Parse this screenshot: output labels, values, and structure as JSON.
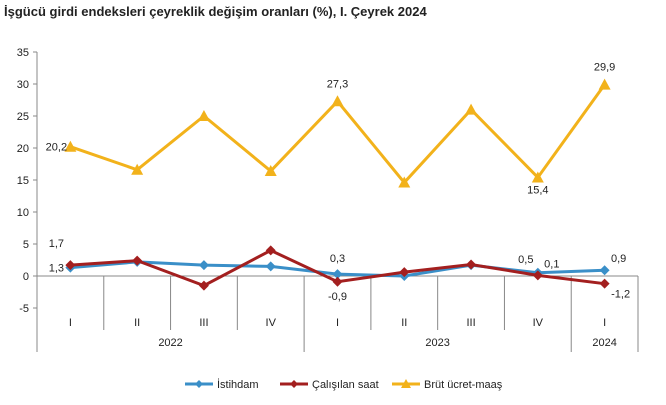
{
  "chart_data": {
    "type": "line",
    "title": "İşgücü girdi endeksleri çeyreklik değişim oranları (%), I. Çeyrek 2024",
    "categories": [
      "I",
      "II",
      "III",
      "IV",
      "I",
      "II",
      "III",
      "IV",
      "I"
    ],
    "years": [
      {
        "label": "2022",
        "span": 4
      },
      {
        "label": "2023",
        "span": 4
      },
      {
        "label": "2024",
        "span": 1
      }
    ],
    "ylim": [
      -5,
      35
    ],
    "yticks": [
      -5,
      0,
      5,
      10,
      15,
      20,
      25,
      30,
      35
    ],
    "grid": false,
    "legend": "bottom",
    "series": [
      {
        "name": "İstihdam",
        "color": "#3a8fc8",
        "marker": "diamond",
        "values": [
          1.3,
          2.2,
          1.7,
          1.5,
          0.3,
          0.0,
          1.7,
          0.5,
          0.9
        ],
        "labels": {
          "0": "1,3",
          "4": "0,3",
          "7": "0,5",
          "8": "0,9"
        }
      },
      {
        "name": "Çalışılan saat",
        "color": "#a31f1f",
        "marker": "diamond",
        "values": [
          1.7,
          2.4,
          -1.5,
          4.0,
          -0.9,
          0.6,
          1.8,
          0.1,
          -1.2
        ],
        "labels": {
          "0": "1,7",
          "4": "-0,9",
          "7": "0,1",
          "8": "-1,2"
        }
      },
      {
        "name": "Brüt ücret-maaş",
        "color": "#f2b21b",
        "marker": "triangle",
        "values": [
          20.2,
          16.6,
          25.0,
          16.4,
          27.3,
          14.6,
          26.0,
          15.4,
          29.9
        ],
        "labels": {
          "0": "20,2",
          "4": "27,3",
          "7": "15,4",
          "8": "29,9"
        }
      }
    ]
  }
}
